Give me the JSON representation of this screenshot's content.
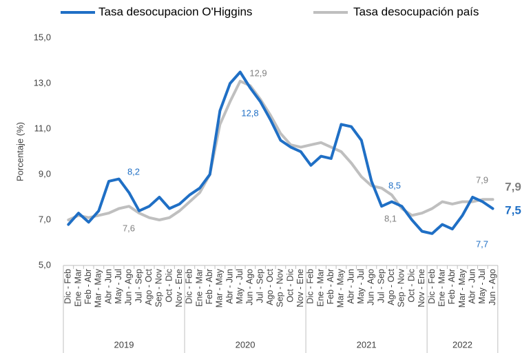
{
  "chart_data": {
    "type": "line",
    "y_label": "Porcentaje (%)",
    "categories": [
      "Dic - Feb",
      "Ene - Mar",
      "Feb - Abr",
      "Mar - May",
      "Abr - Jun",
      "May - Jul",
      "Jun - Ago",
      "Jul - Sep",
      "Ago - Oct",
      "Sep - Nov",
      "Oct - Dic",
      "Nov - Ene",
      "Dic - Feb",
      "Ene - Mar",
      "Feb - Abr",
      "Mar - May",
      "Abr - Jun",
      "May - Jul",
      "Jun - Ago",
      "Jul - Sep",
      "Ago - Oct",
      "Sep - Nov",
      "Oct - Dic",
      "Nov - Ene",
      "Dic - Feb",
      "Ene - Mar",
      "Feb - Abr",
      "Mar - May",
      "Abr - Jun",
      "May - Jul",
      "Jun - Ago",
      "Jul - Sep",
      "Ago - Oct",
      "Sep - Nov",
      "Oct - Dic",
      "Nov - Ene",
      "Dic - Feb",
      "Ene - Mar",
      "Feb - Abr",
      "Mar - May",
      "Abr - Jun",
      "May - Jul",
      "Jun - Ago"
    ],
    "groups": [
      "2019",
      "2020",
      "2021",
      "2022"
    ],
    "series": [
      {
        "name": "Tasa desocupacion O'Higgins",
        "color": "#1f6fc5",
        "values": [
          6.8,
          7.3,
          6.9,
          7.4,
          8.7,
          8.8,
          8.2,
          7.4,
          7.6,
          8.0,
          7.5,
          7.7,
          8.1,
          8.4,
          9.0,
          11.8,
          13.0,
          13.5,
          12.8,
          12.2,
          11.4,
          10.5,
          10.2,
          10.0,
          9.4,
          9.8,
          9.7,
          11.2,
          11.1,
          10.5,
          8.7,
          7.6,
          7.8,
          7.6,
          7.0,
          6.5,
          6.4,
          6.8,
          6.6,
          7.2,
          8.0,
          7.8,
          7.5
        ]
      },
      {
        "name": "Tasa desocupación país",
        "color": "#bfbfbf",
        "values": [
          7.0,
          7.2,
          7.1,
          7.2,
          7.3,
          7.5,
          7.6,
          7.3,
          7.1,
          7.0,
          7.1,
          7.4,
          7.8,
          8.2,
          9.0,
          11.2,
          12.2,
          13.1,
          12.9,
          12.3,
          11.6,
          10.8,
          10.3,
          10.2,
          10.3,
          10.4,
          10.2,
          10.0,
          9.5,
          8.9,
          8.5,
          8.4,
          8.1,
          7.5,
          7.2,
          7.3,
          7.5,
          7.8,
          7.7,
          7.8,
          7.8,
          7.9,
          7.9
        ]
      }
    ],
    "annotations": [
      "8,2",
      "7,6",
      "12,9",
      "12,8",
      "8,5",
      "8,1",
      "7,9",
      "7,7",
      "7,9",
      "7,5"
    ],
    "ylim": [
      5,
      15
    ],
    "yticks": [
      {
        "value": 5,
        "label": "5,0"
      },
      {
        "value": 7,
        "label": "7,0"
      },
      {
        "value": 9,
        "label": "9,0"
      },
      {
        "value": 11,
        "label": "11,0"
      },
      {
        "value": 13,
        "label": "13,0"
      },
      {
        "value": 15,
        "label": "15,0"
      }
    ],
    "grid": false
  }
}
